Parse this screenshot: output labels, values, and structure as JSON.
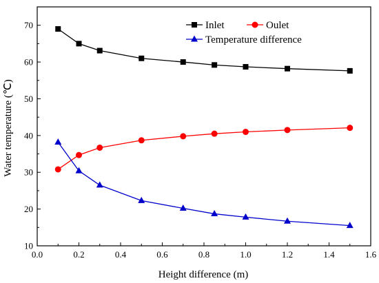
{
  "chart_data": {
    "type": "line",
    "title": "",
    "xlabel": "Height difference (m)",
    "ylabel": "Water temperature (℃)",
    "xlim": [
      0.0,
      1.6
    ],
    "ylim": [
      10,
      75
    ],
    "x_ticks": [
      "0.0",
      "0.2",
      "0.4",
      "0.6",
      "0.8",
      "1.0",
      "1.2",
      "1.4",
      "1.6"
    ],
    "y_ticks": [
      "10",
      "20",
      "30",
      "40",
      "50",
      "60",
      "70"
    ],
    "grid": false,
    "legend_position": "top-right",
    "x": [
      0.1,
      0.2,
      0.3,
      0.5,
      0.7,
      0.85,
      1.0,
      1.2,
      1.5
    ],
    "series": [
      {
        "name": "Inlet",
        "color": "#000000",
        "marker": "square",
        "values": [
          69.0,
          65.0,
          63.1,
          61.0,
          60.0,
          59.2,
          58.7,
          58.2,
          57.6
        ]
      },
      {
        "name": "Oulet",
        "color": "#ff0000",
        "marker": "circle",
        "values": [
          30.8,
          34.7,
          36.7,
          38.7,
          39.8,
          40.5,
          41.0,
          41.5,
          42.1
        ]
      },
      {
        "name": "Temperature difference",
        "color": "#0000cc",
        "marker": "triangle",
        "values": [
          38.2,
          30.4,
          26.5,
          22.3,
          20.2,
          18.7,
          17.8,
          16.7,
          15.5
        ]
      }
    ]
  }
}
